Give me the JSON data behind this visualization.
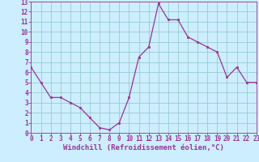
{
  "x": [
    0,
    1,
    2,
    3,
    4,
    5,
    6,
    7,
    8,
    9,
    10,
    11,
    12,
    13,
    14,
    15,
    16,
    17,
    18,
    19,
    20,
    21,
    22,
    23
  ],
  "y": [
    6.5,
    5.0,
    3.5,
    3.5,
    3.0,
    2.5,
    1.5,
    0.5,
    0.3,
    1.0,
    3.5,
    7.5,
    8.5,
    12.8,
    11.2,
    11.2,
    9.5,
    9.0,
    8.5,
    8.0,
    5.5,
    6.5,
    5.0,
    5.0
  ],
  "line_color": "#993399",
  "marker_color": "#993399",
  "bg_color": "#cceeff",
  "grid_color": "#99cccc",
  "xlabel": "Windchill (Refroidissement éolien,°C)",
  "xlim": [
    0,
    23
  ],
  "ylim": [
    0,
    13
  ],
  "xticks": [
    0,
    1,
    2,
    3,
    4,
    5,
    6,
    7,
    8,
    9,
    10,
    11,
    12,
    13,
    14,
    15,
    16,
    17,
    18,
    19,
    20,
    21,
    22,
    23
  ],
  "yticks": [
    0,
    1,
    2,
    3,
    4,
    5,
    6,
    7,
    8,
    9,
    10,
    11,
    12,
    13
  ],
  "tick_fontsize": 5.5,
  "xlabel_fontsize": 6.5,
  "xlabel_color": "#993399",
  "tick_color": "#993399",
  "spine_color": "#993399"
}
